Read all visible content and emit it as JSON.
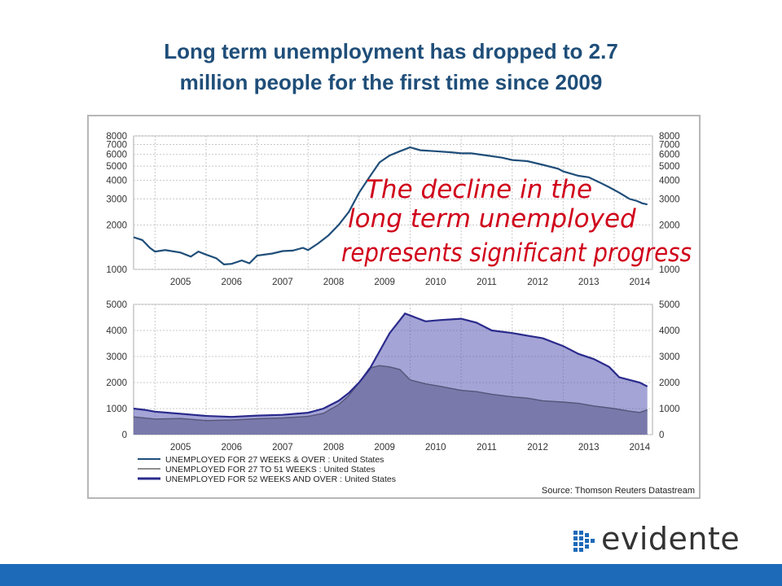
{
  "slide": {
    "title_line1": "Long term unemployment has dropped to 2.7",
    "title_line2": "million people for the first time since 2009",
    "annotation_lines": [
      "The decline in the",
      "long term unemployed",
      "represents significant progress"
    ],
    "annotation_color": "#d0021b",
    "brand_name": "evidente",
    "bar_color": "#1d6ab8"
  },
  "chart_data": [
    {
      "type": "line",
      "scale": "log",
      "x_ticks": [
        "2005",
        "2006",
        "2007",
        "2008",
        "2009",
        "2010",
        "2011",
        "2012",
        "2013",
        "2014"
      ],
      "y_ticks": [
        1000,
        2000,
        3000,
        4000,
        5000,
        6000,
        7000,
        8000
      ],
      "ylim": [
        1000,
        8000
      ],
      "xlim": [
        2004.58,
        2014.75
      ],
      "grid": true,
      "series": [
        {
          "name": "UNEMPLOYED FOR 27 WEEKS & OVER : United States",
          "color": "#1f4e79",
          "x": [
            2004.58,
            2004.75,
            2004.9,
            2005.0,
            2005.2,
            2005.5,
            2005.7,
            2005.85,
            2006.0,
            2006.2,
            2006.35,
            2006.5,
            2006.7,
            2006.85,
            2007.0,
            2007.3,
            2007.5,
            2007.7,
            2007.9,
            2008.0,
            2008.2,
            2008.4,
            2008.6,
            2008.8,
            2009.0,
            2009.2,
            2009.4,
            2009.6,
            2009.8,
            2010.0,
            2010.2,
            2010.5,
            2010.8,
            2011.0,
            2011.2,
            2011.5,
            2011.8,
            2012.0,
            2012.3,
            2012.6,
            2012.9,
            2013.0,
            2013.3,
            2013.5,
            2013.7,
            2013.9,
            2014.1,
            2014.3,
            2014.45,
            2014.55,
            2014.65
          ],
          "values": [
            1650,
            1580,
            1400,
            1320,
            1350,
            1300,
            1220,
            1320,
            1260,
            1190,
            1080,
            1090,
            1150,
            1100,
            1240,
            1280,
            1330,
            1340,
            1400,
            1350,
            1500,
            1700,
            2000,
            2450,
            3300,
            4200,
            5300,
            5900,
            6300,
            6700,
            6400,
            6300,
            6200,
            6100,
            6100,
            5900,
            5700,
            5500,
            5400,
            5100,
            4800,
            4600,
            4300,
            4200,
            3900,
            3600,
            3300,
            3000,
            2900,
            2800,
            2750
          ]
        }
      ]
    },
    {
      "type": "area",
      "x_ticks": [
        "2005",
        "2006",
        "2007",
        "2008",
        "2009",
        "2010",
        "2011",
        "2012",
        "2013",
        "2014"
      ],
      "y_ticks": [
        0,
        1000,
        2000,
        3000,
        4000,
        5000
      ],
      "ylim": [
        0,
        5000
      ],
      "xlim": [
        2004.58,
        2014.75
      ],
      "grid": true,
      "legend_placement": "bottom-left",
      "source": "Source: Thomson Reuters Datastream",
      "series": [
        {
          "name": "UNEMPLOYED FOR 27 TO 51 WEEKS : United States",
          "color": "#8e8e8e",
          "x": [
            2004.58,
            2005.0,
            2005.5,
            2006.0,
            2006.5,
            2007.0,
            2007.5,
            2008.0,
            2008.3,
            2008.6,
            2008.8,
            2009.0,
            2009.2,
            2009.4,
            2009.6,
            2009.8,
            2010.0,
            2010.3,
            2010.6,
            2011.0,
            2011.3,
            2011.6,
            2012.0,
            2012.3,
            2012.6,
            2013.0,
            2013.3,
            2013.6,
            2014.0,
            2014.3,
            2014.5,
            2014.65
          ],
          "values": [
            680,
            600,
            620,
            540,
            560,
            610,
            640,
            700,
            820,
            1150,
            1500,
            2000,
            2550,
            2650,
            2600,
            2500,
            2100,
            1950,
            1850,
            1700,
            1650,
            1550,
            1450,
            1400,
            1300,
            1250,
            1200,
            1100,
            1000,
            900,
            850,
            950
          ]
        },
        {
          "name": "UNEMPLOYED FOR 52 WEEKS AND OVER : United States",
          "color": "#2a2a8c",
          "x": [
            2004.58,
            2004.8,
            2005.0,
            2005.5,
            2006.0,
            2006.5,
            2007.0,
            2007.5,
            2008.0,
            2008.3,
            2008.6,
            2008.8,
            2009.0,
            2009.2,
            2009.4,
            2009.6,
            2009.8,
            2009.9,
            2010.1,
            2010.3,
            2010.6,
            2011.0,
            2011.3,
            2011.6,
            2012.0,
            2012.3,
            2012.6,
            2013.0,
            2013.3,
            2013.6,
            2013.9,
            2014.1,
            2014.3,
            2014.5,
            2014.65
          ],
          "values": [
            1000,
            950,
            880,
            800,
            720,
            680,
            730,
            760,
            840,
            1000,
            1300,
            1600,
            2000,
            2500,
            3200,
            3900,
            4400,
            4650,
            4500,
            4350,
            4400,
            4450,
            4300,
            4000,
            3900,
            3800,
            3700,
            3400,
            3100,
            2900,
            2600,
            2200,
            2100,
            2000,
            1850
          ]
        }
      ]
    }
  ]
}
